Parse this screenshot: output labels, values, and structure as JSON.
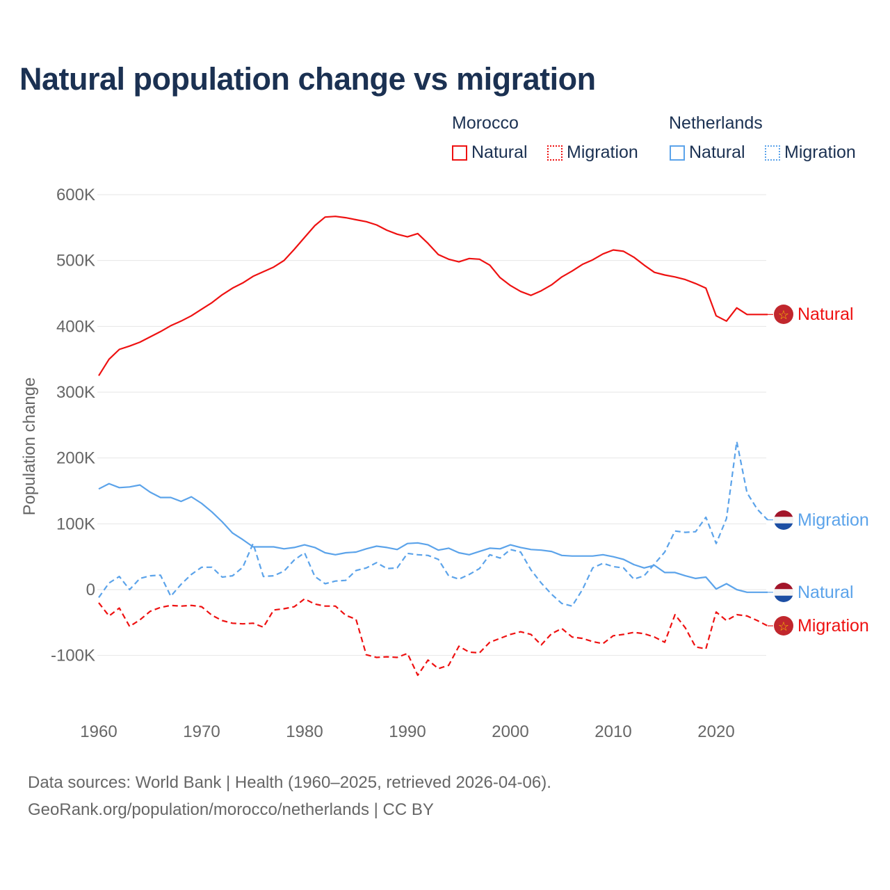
{
  "title": "Natural population change vs migration",
  "legend": {
    "groups": [
      {
        "name": "Morocco",
        "items": [
          {
            "label": "Natural",
            "style": "solid",
            "color": "#ee1111"
          },
          {
            "label": "Migration",
            "style": "dotted",
            "color": "#ee1111"
          }
        ]
      },
      {
        "name": "Netherlands",
        "items": [
          {
            "label": "Natural",
            "style": "solid",
            "color": "#5ba3ea"
          },
          {
            "label": "Migration",
            "style": "dotted",
            "color": "#5ba3ea"
          }
        ]
      }
    ]
  },
  "footer": {
    "line1": "Data sources: World Bank | Health (1960–2025, retrieved 2026-04-06).",
    "line2": "GeoRank.org/population/morocco/netherlands | CC BY"
  },
  "chart_data": {
    "type": "line",
    "title": "Natural population change vs migration",
    "xlabel": "",
    "ylabel": "Population change",
    "xlim": [
      1960,
      2025
    ],
    "ylim": [
      -150000,
      600000
    ],
    "grid": true,
    "x_ticks": [
      1960,
      1970,
      1980,
      1990,
      2000,
      2010,
      2020
    ],
    "x_tick_labels": [
      "1960",
      "1970",
      "1980",
      "1990",
      "2000",
      "2010",
      "2020"
    ],
    "y_ticks": [
      -100000,
      0,
      100000,
      200000,
      300000,
      400000,
      500000,
      600000
    ],
    "y_tick_labels": [
      "-100K",
      "0",
      "100K",
      "200K",
      "300K",
      "400K",
      "500K",
      "600K"
    ],
    "x_start": 1960,
    "unit": "thousands",
    "series": [
      {
        "name": "Morocco Natural",
        "end_label": "Natural",
        "color": "#ee1111",
        "dash": "solid",
        "flag": "morocco",
        "values": [
          325,
          350,
          365,
          370,
          376,
          384,
          392,
          401,
          408,
          416,
          426,
          436,
          448,
          458,
          466,
          476,
          483,
          490,
          500,
          517,
          535,
          553,
          566,
          567,
          565,
          562,
          559,
          554,
          546,
          540,
          536,
          541,
          526,
          509,
          502,
          498,
          503,
          502,
          493,
          474,
          462,
          453,
          447,
          454,
          463,
          475,
          484,
          494,
          501,
          510,
          516,
          514,
          505,
          493,
          482,
          478,
          475,
          471,
          465,
          458,
          416,
          408,
          428,
          418,
          418,
          418
        ]
      },
      {
        "name": "Morocco Migration",
        "end_label": "Migration",
        "color": "#ee1111",
        "dash": "dashed",
        "flag": "morocco",
        "values": [
          -20,
          -40,
          -28,
          -56,
          -46,
          -33,
          -27,
          -24,
          -25,
          -24,
          -26,
          -39,
          -47,
          -51,
          -52,
          -51,
          -57,
          -31,
          -29,
          -26,
          -14,
          -22,
          -25,
          -25,
          -39,
          -45,
          -99,
          -103,
          -102,
          -103,
          -97,
          -130,
          -107,
          -120,
          -115,
          -86,
          -95,
          -96,
          -80,
          -74,
          -68,
          -64,
          -68,
          -84,
          -67,
          -59,
          -72,
          -74,
          -79,
          -82,
          -70,
          -68,
          -65,
          -67,
          -72,
          -80,
          -38,
          -58,
          -87,
          -90,
          -34,
          -47,
          -38,
          -40,
          -47,
          -55
        ]
      },
      {
        "name": "Netherlands Natural",
        "end_label": "Natural",
        "color": "#5ba3ea",
        "dash": "solid",
        "flag": "netherlands",
        "values": [
          153,
          161,
          155,
          156,
          159,
          148,
          140,
          140,
          134,
          141,
          131,
          118,
          103,
          86,
          76,
          65,
          65,
          65,
          62,
          64,
          68,
          64,
          56,
          53,
          56,
          57,
          62,
          66,
          64,
          61,
          70,
          71,
          68,
          60,
          63,
          56,
          53,
          58,
          63,
          62,
          68,
          64,
          61,
          60,
          58,
          52,
          51,
          51,
          51,
          53,
          50,
          46,
          38,
          33,
          37,
          26,
          26,
          21,
          17,
          19,
          1,
          9,
          0,
          -4,
          -4,
          -4
        ]
      },
      {
        "name": "Netherlands Migration",
        "end_label": "Migration",
        "color": "#5ba3ea",
        "dash": "dashed",
        "flag": "netherlands",
        "values": [
          -12,
          10,
          20,
          0,
          17,
          21,
          22,
          -10,
          8,
          23,
          34,
          34,
          19,
          21,
          34,
          70,
          20,
          21,
          28,
          45,
          56,
          20,
          9,
          13,
          14,
          29,
          33,
          41,
          32,
          33,
          55,
          53,
          52,
          46,
          21,
          16,
          23,
          32,
          53,
          48,
          61,
          57,
          30,
          10,
          -7,
          -21,
          -25,
          0,
          33,
          40,
          35,
          33,
          16,
          21,
          39,
          57,
          89,
          87,
          88,
          110,
          70,
          108,
          225,
          147,
          122,
          106
        ]
      }
    ]
  }
}
